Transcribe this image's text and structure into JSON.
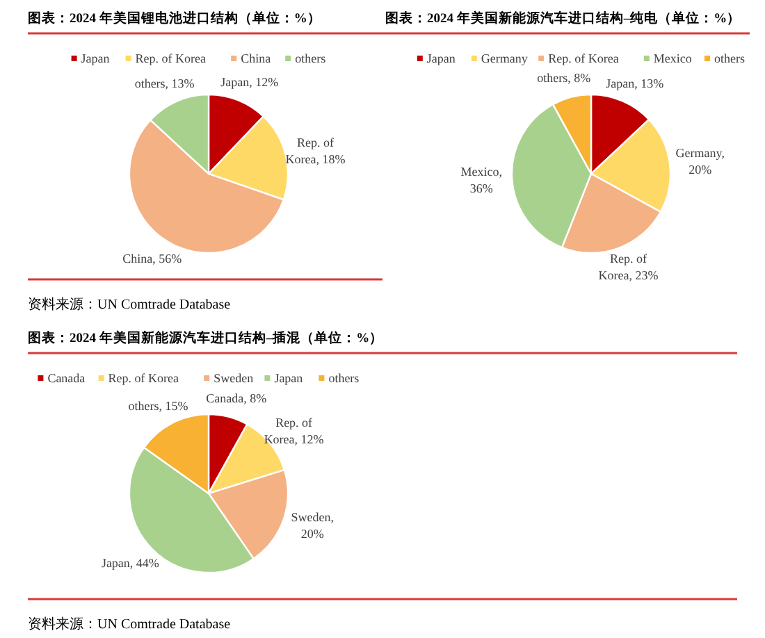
{
  "chart_data": [
    {
      "type": "pie",
      "title": "图表：2024 年美国锂电池进口结构（单位：%）",
      "categories": [
        "Japan",
        "Rep. of Korea",
        "China",
        "others"
      ],
      "values": [
        12,
        18,
        56,
        13
      ],
      "colors": [
        "#c00000",
        "#ffd966",
        "#f4b183",
        "#a9d18e"
      ],
      "legend": "top",
      "value_labels": [
        "Japan, 12%",
        "Rep. of Korea, 18%",
        "China, 56%",
        "others, 13%"
      ],
      "annotations": [
        "资料来源：UN Comtrade Database"
      ]
    },
    {
      "type": "pie",
      "title": "图表：2024 年美国新能源汽车进口结构–纯电（单位：%）",
      "categories": [
        "Japan",
        "Germany",
        "Rep. of Korea",
        "Mexico",
        "others"
      ],
      "values": [
        13,
        20,
        23,
        36,
        8
      ],
      "colors": [
        "#c00000",
        "#ffd966",
        "#f4b183",
        "#a9d18e",
        "#f8b133"
      ],
      "legend": "top",
      "value_labels": [
        "Japan, 13%",
        "Germany, 20%",
        "Rep. of Korea, 23%",
        "Mexico, 36%",
        "others, 8%"
      ]
    },
    {
      "type": "pie",
      "title": "图表：2024 年美国新能源汽车进口结构–插混（单位：%）",
      "categories": [
        "Canada",
        "Rep. of Korea",
        "Sweden",
        "Japan",
        "others"
      ],
      "values": [
        8,
        12,
        20,
        44,
        15
      ],
      "colors": [
        "#c00000",
        "#ffd966",
        "#f4b183",
        "#a9d18e",
        "#f8b133"
      ],
      "legend": "top",
      "value_labels": [
        "Canada, 8%",
        "Rep. of Korea, 12%",
        "Sweden, 20%",
        "Japan, 44%",
        "others, 15%"
      ],
      "annotations": [
        "资料来源：UN Comtrade Database"
      ]
    }
  ]
}
